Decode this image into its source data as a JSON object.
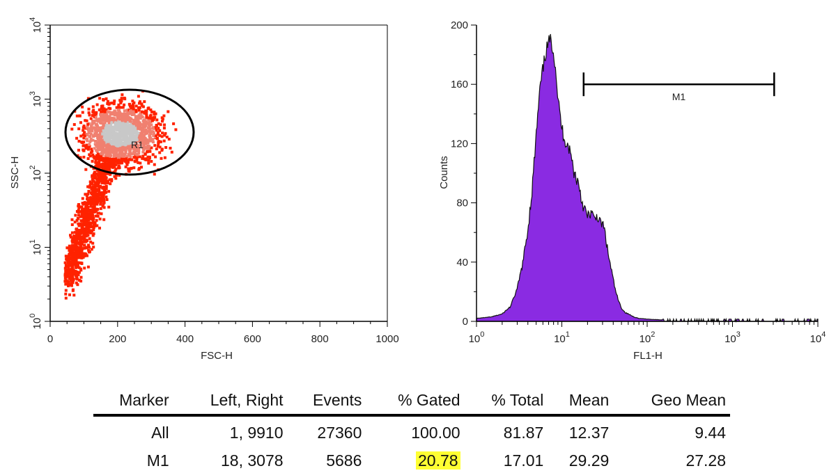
{
  "chart_data": [
    {
      "type": "scatter",
      "subtype": "density-dot-plot",
      "xlabel": "FSC-H",
      "ylabel": "SSC-H",
      "xlim": [
        0,
        1000
      ],
      "ylim": [
        1,
        10000
      ],
      "yscale": "log",
      "x_ticks": [
        0,
        200,
        400,
        600,
        800,
        1000
      ],
      "x_tick_labels": [
        "0",
        "200",
        "400",
        "600",
        "800",
        "1000"
      ],
      "y_tick_labels": [
        {
          "base": "10",
          "exp": "0"
        },
        {
          "base": "10",
          "exp": "1"
        },
        {
          "base": "10",
          "exp": "2"
        },
        {
          "base": "10",
          "exp": "3"
        },
        {
          "base": "10",
          "exp": "4"
        }
      ],
      "region": {
        "name": "R1",
        "center": [
          220,
          350
        ],
        "x_range": [
          45,
          430
        ],
        "y_range": [
          95,
          1300
        ]
      },
      "colors": {
        "low_density": "#ff2200",
        "mid_density": "#f08070",
        "high_density": "#c8c8c8"
      },
      "grid": false
    },
    {
      "type": "area",
      "subtype": "histogram",
      "xlabel": "FL1-H",
      "ylabel": "Counts",
      "xscale": "log",
      "xlim": [
        1,
        10000
      ],
      "ylim": [
        0,
        200
      ],
      "y_ticks": [
        0,
        40,
        80,
        120,
        160,
        200
      ],
      "y_tick_labels": [
        "0",
        "40",
        "80",
        "120",
        "160",
        "200"
      ],
      "x_tick_labels": [
        {
          "base": "10",
          "exp": "0"
        },
        {
          "base": "10",
          "exp": "1"
        },
        {
          "base": "10",
          "exp": "2"
        },
        {
          "base": "10",
          "exp": "3"
        },
        {
          "base": "10",
          "exp": "4"
        }
      ],
      "fill_color": "#8a2be2",
      "x": [
        1,
        1.5,
        2,
        2.5,
        3,
        3.5,
        4,
        4.5,
        5,
        5.5,
        6,
        6.5,
        7,
        7.5,
        8,
        8.5,
        9,
        10,
        11,
        12,
        13,
        14,
        15,
        16,
        17,
        18,
        20,
        22,
        24,
        26,
        28,
        30,
        32,
        35,
        38,
        42,
        46,
        50,
        55,
        60,
        70,
        80,
        100,
        150,
        300,
        1000,
        3000,
        10000
      ],
      "values": [
        2,
        3,
        5,
        10,
        22,
        40,
        62,
        90,
        125,
        155,
        170,
        182,
        188,
        190,
        182,
        170,
        150,
        130,
        122,
        118,
        110,
        100,
        96,
        92,
        82,
        78,
        70,
        74,
        68,
        72,
        66,
        66,
        60,
        45,
        35,
        22,
        14,
        9,
        6,
        5,
        3,
        2,
        1.5,
        1,
        0.5,
        0.3,
        0.2,
        0
      ],
      "marker": {
        "name": "M1",
        "left": 18,
        "right": 3078,
        "y": 160
      },
      "grid": false
    }
  ],
  "stats_table": {
    "columns": [
      "Marker",
      "Left, Right",
      "Events",
      "% Gated",
      "% Total",
      "Mean",
      "Geo Mean"
    ],
    "rows": [
      [
        "All",
        "1,  9910",
        "27360",
        "100.00",
        "81.87",
        "12.37",
        "9.44"
      ],
      [
        "M1",
        "18,  3078",
        "5686",
        "20.78",
        "17.01",
        "29.29",
        "27.28"
      ]
    ],
    "highlight": {
      "row": 1,
      "col": 3,
      "color": "#ffff33"
    }
  }
}
